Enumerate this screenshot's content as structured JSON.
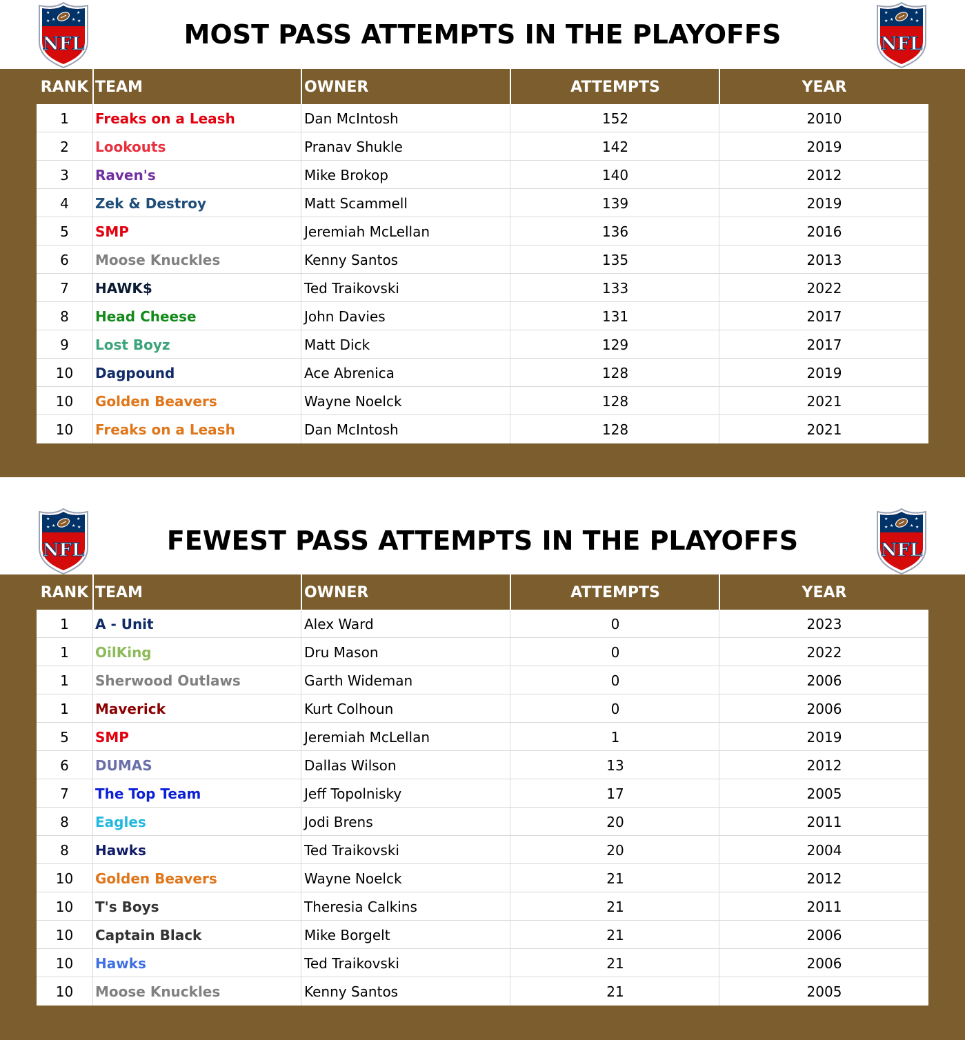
{
  "most": {
    "title": "MOST PASS ATTEMPTS IN THE PLAYOFFS",
    "logo_icon": "nfl-shield-logo",
    "headers": {
      "rank": "RANK",
      "team": "TEAM",
      "owner": "OWNER",
      "attempts": "ATTEMPTS",
      "year": "YEAR"
    },
    "rows": [
      {
        "rank": "1",
        "team": "Freaks on a Leash",
        "team_color": "#e3000f",
        "owner": "Dan McIntosh",
        "attempts": "152",
        "year": "2010"
      },
      {
        "rank": "2",
        "team": "Lookouts",
        "team_color": "#e8303f",
        "owner": "Pranav Shukle",
        "attempts": "142",
        "year": "2019"
      },
      {
        "rank": "3",
        "team": "Raven's",
        "team_color": "#7030a0",
        "owner": "Mike Brokop",
        "attempts": "140",
        "year": "2012"
      },
      {
        "rank": "4",
        "team": "Zek & Destroy",
        "team_color": "#1f4e79",
        "owner": "Matt Scammell",
        "attempts": "139",
        "year": "2019"
      },
      {
        "rank": "5",
        "team": "SMP",
        "team_color": "#e3000f",
        "owner": "Jeremiah McLellan",
        "attempts": "136",
        "year": "2016"
      },
      {
        "rank": "6",
        "team": "Moose Knuckles",
        "team_color": "#808080",
        "owner": "Kenny Santos",
        "attempts": "135",
        "year": "2013"
      },
      {
        "rank": "7",
        "team": "HAWK$",
        "team_color": "#0b1a33",
        "owner": "Ted Traikovski",
        "attempts": "133",
        "year": "2022"
      },
      {
        "rank": "8",
        "team": "Head Cheese",
        "team_color": "#138a1a",
        "owner": "John Davies",
        "attempts": "131",
        "year": "2017"
      },
      {
        "rank": "9",
        "team": "Lost Boyz",
        "team_color": "#3aa37a",
        "owner": "Matt Dick",
        "attempts": "129",
        "year": "2017"
      },
      {
        "rank": "10",
        "team": "Dagpound",
        "team_color": "#0f2a66",
        "owner": "Ace Abrenica",
        "attempts": "128",
        "year": "2019"
      },
      {
        "rank": "10",
        "team": "Golden Beavers",
        "team_color": "#e0761a",
        "owner": "Wayne Noelck",
        "attempts": "128",
        "year": "2021"
      },
      {
        "rank": "10",
        "team": "Freaks on a Leash",
        "team_color": "#e0761a",
        "owner": "Dan McIntosh",
        "attempts": "128",
        "year": "2021"
      }
    ]
  },
  "fewest": {
    "title": "FEWEST PASS ATTEMPTS IN THE PLAYOFFS",
    "logo_icon": "nfl-shield-logo",
    "headers": {
      "rank": "RANK",
      "team": "TEAM",
      "owner": "OWNER",
      "attempts": "ATTEMPTS",
      "year": "YEAR"
    },
    "rows": [
      {
        "rank": "1",
        "team": "A - Unit",
        "team_color": "#0f2a66",
        "owner": "Alex Ward",
        "attempts": "0",
        "year": "2023"
      },
      {
        "rank": "1",
        "team": "OilKing",
        "team_color": "#8dbb5a",
        "owner": "Dru Mason",
        "attempts": "0",
        "year": "2022"
      },
      {
        "rank": "1",
        "team": "Sherwood Outlaws",
        "team_color": "#808080",
        "owner": "Garth Wideman",
        "attempts": "0",
        "year": "2006"
      },
      {
        "rank": "1",
        "team": "Maverick",
        "team_color": "#8b0000",
        "owner": "Kurt Colhoun",
        "attempts": "0",
        "year": "2006"
      },
      {
        "rank": "5",
        "team": "SMP",
        "team_color": "#e3000f",
        "owner": "Jeremiah McLellan",
        "attempts": "1",
        "year": "2019"
      },
      {
        "rank": "6",
        "team": "DUMAS",
        "team_color": "#6b6fa8",
        "owner": "Dallas Wilson",
        "attempts": "13",
        "year": "2012"
      },
      {
        "rank": "7",
        "team": "The Top Team",
        "team_color": "#0a1fd6",
        "owner": "Jeff Topolnisky",
        "attempts": "17",
        "year": "2005"
      },
      {
        "rank": "8",
        "team": "Eagles",
        "team_color": "#22b8e0",
        "owner": "Jodi Brens",
        "attempts": "20",
        "year": "2011"
      },
      {
        "rank": "8",
        "team": "Hawks",
        "team_color": "#0f1a66",
        "owner": "Ted Traikovski",
        "attempts": "20",
        "year": "2004"
      },
      {
        "rank": "10",
        "team": "Golden Beavers",
        "team_color": "#e0761a",
        "owner": "Wayne Noelck",
        "attempts": "21",
        "year": "2012"
      },
      {
        "rank": "10",
        "team": "T's Boys",
        "team_color": "#333333",
        "owner": "Theresia Calkins",
        "attempts": "21",
        "year": "2011"
      },
      {
        "rank": "10",
        "team": "Captain Black",
        "team_color": "#333333",
        "owner": "Mike Borgelt",
        "attempts": "21",
        "year": "2006"
      },
      {
        "rank": "10",
        "team": "Hawks",
        "team_color": "#3f6fe0",
        "owner": "Ted Traikovski",
        "attempts": "21",
        "year": "2006"
      },
      {
        "rank": "10",
        "team": "Moose Knuckles",
        "team_color": "#808080",
        "owner": "Kenny Santos",
        "attempts": "21",
        "year": "2005"
      }
    ]
  }
}
